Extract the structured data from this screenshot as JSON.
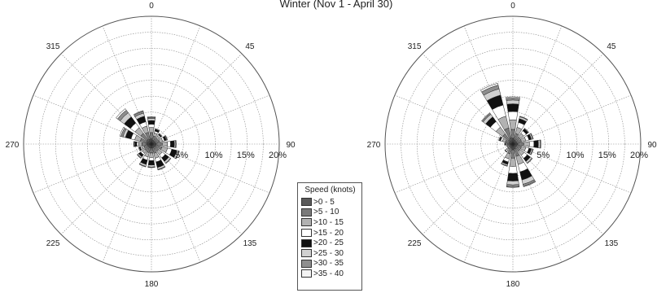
{
  "title": "Winter (Nov 1 - April 30)",
  "legend": {
    "title": "Speed (knots)",
    "items": [
      ">0 - 5",
      ">5 - 10",
      ">10 - 15",
      ">15 - 20",
      ">20 - 25",
      ">25 - 30",
      ">30 - 35",
      ">35 - 40"
    ]
  },
  "colors": {
    "bins": [
      "#5a5a5a",
      "#7a7a7a",
      "#b2b2b2",
      "#ffffff",
      "#111111",
      "#d0d0d0",
      "#8e8e8e",
      "#f4f4f4"
    ],
    "grid": "#888888"
  },
  "chart_data": [
    {
      "type": "wind-rose",
      "radial_ticks": [
        "5%",
        "10%",
        "15%",
        "20%"
      ],
      "radial_max": 20,
      "direction_labels": [
        "0",
        "45",
        "90",
        "135",
        "180",
        "225",
        "270",
        "315"
      ],
      "sector_count": 16,
      "directions_deg": [
        0,
        22.5,
        45,
        67.5,
        90,
        112.5,
        135,
        157.5,
        180,
        202.5,
        225,
        247.5,
        270,
        292.5,
        315,
        337.5
      ],
      "series": [
        {
          "bin": ">0 - 5",
          "values": [
            0.8,
            0.6,
            0.6,
            0.6,
            0.7,
            0.7,
            0.6,
            0.6,
            0.6,
            0.6,
            0.6,
            0.6,
            0.7,
            0.8,
            0.9,
            0.8
          ]
        },
        {
          "bin": ">5 - 10",
          "values": [
            1.0,
            0.7,
            0.6,
            0.7,
            1.0,
            1.0,
            0.8,
            0.9,
            0.8,
            0.8,
            0.7,
            0.6,
            0.8,
            1.0,
            1.2,
            1.1
          ]
        },
        {
          "bin": ">10 - 15",
          "values": [
            0.8,
            0.5,
            0.4,
            0.5,
            0.8,
            0.9,
            0.7,
            0.8,
            0.7,
            0.7,
            0.5,
            0.4,
            0.5,
            0.9,
            1.1,
            1.0
          ]
        },
        {
          "bin": ">15 - 20",
          "values": [
            0.5,
            0.3,
            0.2,
            0.3,
            0.5,
            0.7,
            0.6,
            0.6,
            0.5,
            0.5,
            0.3,
            0.2,
            0.3,
            0.6,
            0.9,
            0.7
          ]
        },
        {
          "bin": ">20 - 25",
          "values": [
            0.6,
            0.3,
            0.2,
            0.3,
            0.6,
            0.8,
            0.7,
            0.9,
            0.7,
            0.7,
            0.4,
            0.2,
            0.3,
            0.9,
            1.2,
            0.9
          ]
        },
        {
          "bin": ">25 - 30",
          "values": [
            0.3,
            0.1,
            0.1,
            0.1,
            0.2,
            0.3,
            0.3,
            0.3,
            0.3,
            0.3,
            0.2,
            0.1,
            0.1,
            0.4,
            0.8,
            0.5
          ]
        },
        {
          "bin": ">30 - 35",
          "values": [
            0.2,
            0.0,
            0.0,
            0.1,
            0.1,
            0.1,
            0.1,
            0.1,
            0.1,
            0.1,
            0.1,
            0.0,
            0.1,
            0.3,
            0.5,
            0.3
          ]
        },
        {
          "bin": ">35 - 40",
          "values": [
            0.1,
            0.0,
            0.0,
            0.0,
            0.0,
            0.0,
            0.0,
            0.0,
            0.0,
            0.0,
            0.0,
            0.0,
            0.0,
            0.2,
            0.3,
            0.1
          ]
        }
      ]
    },
    {
      "type": "wind-rose",
      "radial_ticks": [
        "5%",
        "10%",
        "15%",
        "20%"
      ],
      "radial_max": 20,
      "direction_labels": [
        "0",
        "45",
        "90",
        "135",
        "180",
        "225",
        "270",
        "315"
      ],
      "sector_count": 16,
      "directions_deg": [
        0,
        22.5,
        45,
        67.5,
        90,
        112.5,
        135,
        157.5,
        180,
        202.5,
        225,
        247.5,
        270,
        292.5,
        315,
        337.5
      ],
      "series": [
        {
          "bin": ">0 - 5",
          "values": [
            0.9,
            0.7,
            0.6,
            0.6,
            0.7,
            0.6,
            0.6,
            0.8,
            0.9,
            0.7,
            0.5,
            0.4,
            0.5,
            0.6,
            0.8,
            1.0
          ]
        },
        {
          "bin": ">5 - 10",
          "values": [
            1.4,
            1.0,
            0.8,
            0.8,
            1.0,
            0.8,
            0.8,
            1.2,
            1.3,
            0.9,
            0.5,
            0.3,
            0.4,
            0.6,
            1.2,
            1.6
          ]
        },
        {
          "bin": ">10 - 15",
          "values": [
            1.5,
            1.0,
            0.7,
            0.7,
            0.9,
            0.7,
            0.8,
            1.3,
            1.3,
            0.8,
            0.3,
            0.2,
            0.2,
            0.5,
            1.3,
            1.9
          ]
        },
        {
          "bin": ">15 - 20",
          "values": [
            1.3,
            0.8,
            0.5,
            0.5,
            0.7,
            0.5,
            0.6,
            1.2,
            1.1,
            0.5,
            0.2,
            0.1,
            0.1,
            0.3,
            1.1,
            1.8
          ]
        },
        {
          "bin": ">20 - 25",
          "values": [
            1.2,
            0.6,
            0.4,
            0.4,
            0.7,
            0.4,
            0.6,
            1.3,
            1.2,
            0.4,
            0.1,
            0.0,
            0.1,
            0.2,
            0.9,
            1.6
          ]
        },
        {
          "bin": ">25 - 30",
          "values": [
            0.6,
            0.3,
            0.1,
            0.2,
            0.3,
            0.2,
            0.3,
            0.7,
            0.6,
            0.2,
            0.0,
            0.0,
            0.0,
            0.1,
            0.5,
            1.0
          ]
        },
        {
          "bin": ">30 - 35",
          "values": [
            0.3,
            0.1,
            0.0,
            0.1,
            0.1,
            0.1,
            0.1,
            0.3,
            0.3,
            0.1,
            0.0,
            0.0,
            0.0,
            0.0,
            0.2,
            0.6
          ]
        },
        {
          "bin": ">35 - 40",
          "values": [
            0.2,
            0.0,
            0.0,
            0.0,
            0.0,
            0.0,
            0.0,
            0.1,
            0.1,
            0.0,
            0.0,
            0.0,
            0.0,
            0.0,
            0.1,
            0.3
          ]
        }
      ]
    }
  ]
}
